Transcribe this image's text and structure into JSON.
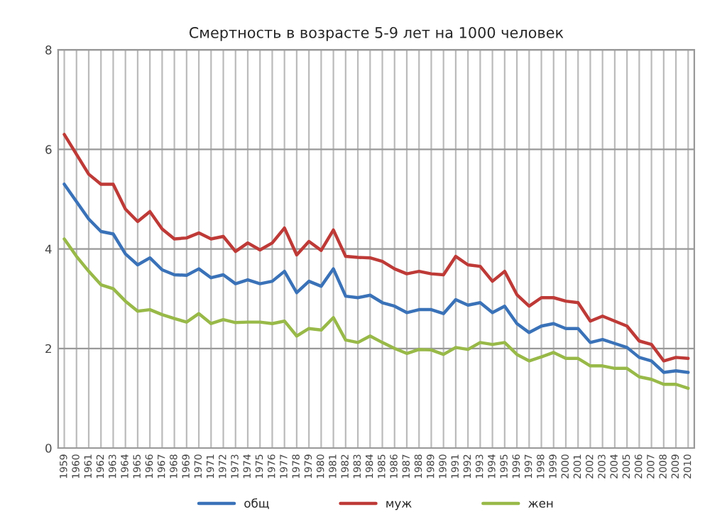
{
  "chart_data": {
    "type": "line",
    "title": "Смертность в возрасте 5-9 лет на 1000 человек",
    "categories": [
      "1959",
      "1960",
      "1961",
      "1962",
      "1963",
      "1964",
      "1965",
      "1966",
      "1967",
      "1968",
      "1969",
      "1970",
      "1971",
      "1972",
      "1973",
      "1974",
      "1975",
      "1976",
      "1977",
      "1978",
      "1979",
      "1980",
      "1981",
      "1982",
      "1983",
      "1984",
      "1985",
      "1986",
      "1987",
      "1988",
      "1989",
      "1990",
      "1991",
      "1992",
      "1993",
      "1994",
      "1995",
      "1996",
      "1997",
      "1998",
      "1999",
      "2000",
      "2001",
      "2002",
      "2003",
      "2004",
      "2005",
      "2006",
      "2007",
      "2008",
      "2009",
      "2010"
    ],
    "series": [
      {
        "name": "общ",
        "color": "#3a72b8",
        "values": [
          5.3,
          4.95,
          4.6,
          4.35,
          4.3,
          3.9,
          3.68,
          3.82,
          3.58,
          3.48,
          3.47,
          3.6,
          3.42,
          3.48,
          3.3,
          3.38,
          3.3,
          3.35,
          3.55,
          3.12,
          3.35,
          3.25,
          3.6,
          3.05,
          3.02,
          3.07,
          2.92,
          2.85,
          2.72,
          2.78,
          2.78,
          2.7,
          2.98,
          2.87,
          2.92,
          2.72,
          2.85,
          2.5,
          2.32,
          2.45,
          2.5,
          2.4,
          2.4,
          2.12,
          2.18,
          2.1,
          2.02,
          1.82,
          1.75,
          1.52,
          1.55,
          1.52
        ]
      },
      {
        "name": "муж",
        "color": "#be3a37",
        "values": [
          6.3,
          5.9,
          5.5,
          5.3,
          5.3,
          4.8,
          4.55,
          4.75,
          4.4,
          4.2,
          4.22,
          4.32,
          4.2,
          4.25,
          3.95,
          4.12,
          3.98,
          4.12,
          4.42,
          3.88,
          4.15,
          3.97,
          4.38,
          3.85,
          3.83,
          3.82,
          3.75,
          3.6,
          3.5,
          3.55,
          3.5,
          3.48,
          3.85,
          3.68,
          3.65,
          3.35,
          3.55,
          3.08,
          2.85,
          3.02,
          3.02,
          2.95,
          2.92,
          2.55,
          2.65,
          2.55,
          2.45,
          2.15,
          2.08,
          1.75,
          1.82,
          1.8
        ]
      },
      {
        "name": "жен",
        "color": "#98b948",
        "values": [
          4.2,
          3.85,
          3.55,
          3.28,
          3.2,
          2.95,
          2.75,
          2.78,
          2.68,
          2.6,
          2.53,
          2.7,
          2.5,
          2.58,
          2.52,
          2.53,
          2.53,
          2.5,
          2.55,
          2.25,
          2.4,
          2.37,
          2.62,
          2.17,
          2.12,
          2.25,
          2.12,
          2.0,
          1.9,
          1.98,
          1.97,
          1.88,
          2.02,
          1.98,
          2.12,
          2.08,
          2.12,
          1.88,
          1.75,
          1.83,
          1.92,
          1.8,
          1.8,
          1.65,
          1.65,
          1.6,
          1.6,
          1.43,
          1.38,
          1.28,
          1.28,
          1.2
        ]
      }
    ],
    "ylim": [
      0,
      8
    ],
    "yticks": [
      0,
      2,
      4,
      6,
      8
    ],
    "grid": true,
    "legend": "bottom",
    "marker": "none",
    "line_style": "solid"
  }
}
